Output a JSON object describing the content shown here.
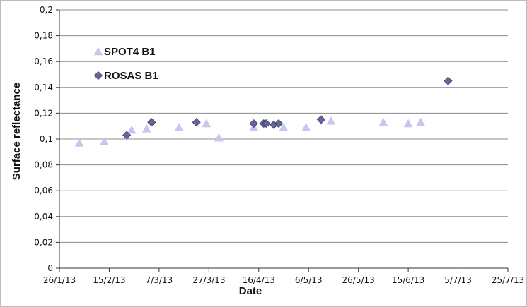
{
  "chart_data": {
    "type": "scatter",
    "title": "",
    "xlabel": "Date",
    "ylabel": "Surface reflectance",
    "xlim": [
      "2013-01-26",
      "2013-07-25"
    ],
    "ylim": [
      0,
      0.2
    ],
    "x_tick_values": [
      "2013-01-26",
      "2013-02-15",
      "2013-03-07",
      "2013-03-27",
      "2013-04-16",
      "2013-05-06",
      "2013-05-26",
      "2013-06-15",
      "2013-07-05",
      "2013-07-25"
    ],
    "x_tick_labels": [
      "26/1/13",
      "15/2/13",
      "7/3/13",
      "27/3/13",
      "16/4/13",
      "6/5/13",
      "26/5/13",
      "15/6/13",
      "5/7/13",
      "25/7/13"
    ],
    "y_tick_values": [
      0,
      0.02,
      0.04,
      0.06,
      0.08,
      0.1,
      0.12,
      0.14,
      0.16,
      0.18,
      0.2
    ],
    "y_tick_labels": [
      "0",
      "0,02",
      "0,04",
      "0,06",
      "0,08",
      "0,1",
      "0,12",
      "0,14",
      "0,16",
      "0,18",
      "0,2"
    ],
    "grid": {
      "horizontal": true,
      "vertical": false
    },
    "legend_position": "top-left",
    "series": [
      {
        "name": "SPOT4 B1",
        "marker": "triangle",
        "color": "#c6c6f0",
        "points": [
          {
            "x": "2013-02-03",
            "y": 0.097
          },
          {
            "x": "2013-02-13",
            "y": 0.098
          },
          {
            "x": "2013-02-24",
            "y": 0.107
          },
          {
            "x": "2013-03-02",
            "y": 0.108
          },
          {
            "x": "2013-03-15",
            "y": 0.109
          },
          {
            "x": "2013-03-26",
            "y": 0.112
          },
          {
            "x": "2013-03-31",
            "y": 0.101
          },
          {
            "x": "2013-04-14",
            "y": 0.109
          },
          {
            "x": "2013-04-26",
            "y": 0.109
          },
          {
            "x": "2013-05-05",
            "y": 0.109
          },
          {
            "x": "2013-05-15",
            "y": 0.114
          },
          {
            "x": "2013-06-05",
            "y": 0.113
          },
          {
            "x": "2013-06-15",
            "y": 0.112
          },
          {
            "x": "2013-06-20",
            "y": 0.113
          }
        ]
      },
      {
        "name": "ROSAS B1",
        "marker": "diamond",
        "color": "#666699",
        "points": [
          {
            "x": "2013-02-22",
            "y": 0.103
          },
          {
            "x": "2013-03-04",
            "y": 0.113
          },
          {
            "x": "2013-03-22",
            "y": 0.113
          },
          {
            "x": "2013-04-14",
            "y": 0.112
          },
          {
            "x": "2013-04-18",
            "y": 0.112
          },
          {
            "x": "2013-04-19",
            "y": 0.112
          },
          {
            "x": "2013-04-22",
            "y": 0.111
          },
          {
            "x": "2013-04-24",
            "y": 0.112
          },
          {
            "x": "2013-05-11",
            "y": 0.115
          },
          {
            "x": "2013-07-01",
            "y": 0.145
          }
        ]
      }
    ]
  }
}
